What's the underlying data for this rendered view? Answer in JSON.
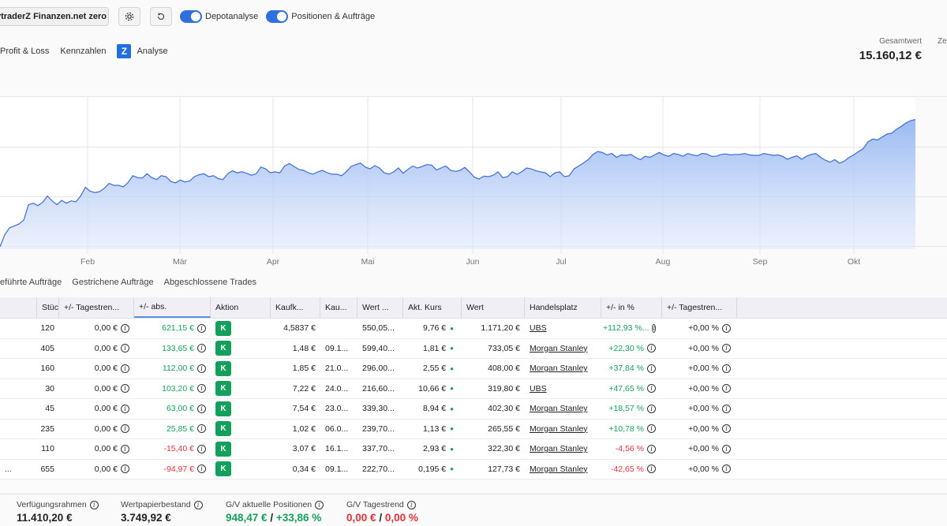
{
  "toolbar": {
    "account": "ytraderZ Finanzen.net zero",
    "toggles": [
      "Depotanalyse",
      "Positionen & Aufträge"
    ]
  },
  "tabs": [
    "Profit & Loss",
    "Kennzahlen",
    "Analyse"
  ],
  "total": {
    "label": "Gesamtwert",
    "value": "15.160,12 €",
    "cut_label": "Ze"
  },
  "chart_data": {
    "type": "area",
    "x_labels": [
      "Feb",
      "Mär",
      "Apr",
      "Mai",
      "Jun",
      "Jul",
      "Aug",
      "Sep",
      "Okt"
    ],
    "values": [
      5,
      30,
      44,
      48,
      52,
      60,
      92,
      95,
      90,
      97,
      110,
      100,
      92,
      101,
      95,
      100,
      98,
      110,
      128,
      120,
      117,
      119,
      126,
      136,
      132,
      132,
      129,
      138,
      152,
      148,
      147,
      156,
      148,
      144,
      152,
      150,
      140,
      137,
      143,
      139,
      141,
      150,
      154,
      156,
      150,
      152,
      146,
      144,
      156,
      162,
      158,
      160,
      157,
      153,
      156,
      170,
      166,
      158,
      160,
      158,
      172,
      177,
      171,
      165,
      163,
      158,
      155,
      160,
      163,
      158,
      155,
      155,
      152,
      160,
      171,
      175,
      178,
      170,
      166,
      173,
      168,
      158,
      155,
      160,
      168,
      157,
      165,
      172,
      168,
      171,
      175,
      174,
      164,
      168,
      172,
      163,
      161,
      163,
      169,
      160,
      149,
      145,
      151,
      150,
      153,
      160,
      148,
      150,
      160,
      155,
      160,
      168,
      166,
      162,
      160,
      158,
      150,
      158,
      160,
      150,
      152,
      166,
      172,
      178,
      185,
      196,
      202,
      200,
      195,
      198,
      190,
      195,
      194,
      196,
      190,
      185,
      192,
      190,
      195,
      200,
      195,
      192,
      198,
      196,
      192,
      198,
      195,
      193,
      198,
      197,
      192,
      192,
      196,
      197,
      195,
      196,
      196,
      198,
      195,
      194,
      194,
      198,
      196,
      194,
      195,
      192,
      186,
      190,
      193,
      186,
      192,
      196,
      198,
      190,
      184,
      180,
      185,
      178,
      182,
      190,
      195,
      202,
      208,
      222,
      228,
      226,
      232,
      238,
      240,
      248,
      254,
      261,
      266,
      268
    ]
  },
  "subtabs": [
    "eführte Aufträge",
    "Gestrichene Aufträge",
    "Abgeschlossene Trades"
  ],
  "table": {
    "headers": [
      "Stück...",
      "+/- Tagestren...",
      "+/- abs.",
      "Aktion",
      "Kaufk...",
      "Kau...",
      "Wert ...",
      "Akt. Kurs",
      "Wert",
      "Handelsplatz",
      "+/- in %",
      "+/- Tagestren..."
    ],
    "badge": "K",
    "rows": [
      {
        "first": "",
        "qty": "120",
        "day": "0,00 €",
        "abs": "621,15 €",
        "abs_sign": "pos",
        "kaufk": "4,5837 €",
        "kau": "",
        "wert1": "550,05...",
        "kurs": "9,76 €",
        "wert": "1.171,20 €",
        "platz": "UBS",
        "pct": "+112,93 %...",
        "pct_sign": "pos",
        "trend": "+0,00 %"
      },
      {
        "first": "",
        "qty": "405",
        "day": "0,00 €",
        "abs": "133,65 €",
        "abs_sign": "pos",
        "kaufk": "1,48 €",
        "kau": "09.1...",
        "wert1": "599,40...",
        "kurs": "1,81 €",
        "wert": "733,05 €",
        "platz": "Morgan Stanley",
        "pct": "+22,30 %",
        "pct_sign": "pos",
        "trend": "+0,00 %"
      },
      {
        "first": "",
        "qty": "160",
        "day": "0,00 €",
        "abs": "112,00 €",
        "abs_sign": "pos",
        "kaufk": "1,85 €",
        "kau": "21.0...",
        "wert1": "296,00...",
        "kurs": "2,55 €",
        "wert": "408,00 €",
        "platz": "Morgan Stanley",
        "pct": "+37,84 %",
        "pct_sign": "pos",
        "trend": "+0,00 %"
      },
      {
        "first": "",
        "qty": "30",
        "day": "0,00 €",
        "abs": "103,20 €",
        "abs_sign": "pos",
        "kaufk": "7,22 €",
        "kau": "24.0...",
        "wert1": "216,60...",
        "kurs": "10,66 €",
        "wert": "319,80 €",
        "platz": "UBS",
        "pct": "+47,65 %",
        "pct_sign": "pos",
        "trend": "+0,00 %"
      },
      {
        "first": "",
        "qty": "45",
        "day": "0,00 €",
        "abs": "63,00 €",
        "abs_sign": "pos",
        "kaufk": "7,54 €",
        "kau": "23.0...",
        "wert1": "339,30...",
        "kurs": "8,94 €",
        "wert": "402,30 €",
        "platz": "Morgan Stanley",
        "pct": "+18,57 %",
        "pct_sign": "pos",
        "trend": "+0,00 %"
      },
      {
        "first": "",
        "qty": "235",
        "day": "0,00 €",
        "abs": "25,85 €",
        "abs_sign": "pos",
        "kaufk": "1,02 €",
        "kau": "06.0...",
        "wert1": "239,70...",
        "kurs": "1,13 €",
        "wert": "265,55 €",
        "platz": "Morgan Stanley",
        "pct": "+10,78 %",
        "pct_sign": "pos",
        "trend": "+0,00 %"
      },
      {
        "first": "",
        "qty": "110",
        "day": "0,00 €",
        "abs": "-15,40 €",
        "abs_sign": "neg",
        "kaufk": "3,07 €",
        "kau": "16.1...",
        "wert1": "337,70...",
        "kurs": "2,93 €",
        "wert": "322,30 €",
        "platz": "Morgan Stanley",
        "pct": "-4,56 %",
        "pct_sign": "neg",
        "trend": "+0,00 %"
      },
      {
        "first": "...",
        "qty": "655",
        "day": "0,00 €",
        "abs": "-94,97 €",
        "abs_sign": "neg",
        "kaufk": "0,34 €",
        "kau": "09.1...",
        "wert1": "222,70...",
        "kurs": "0,195 €",
        "wert": "127,73 €",
        "platz": "Morgan Stanley",
        "pct": "-42,65 %",
        "pct_sign": "neg",
        "trend": "+0,00 %"
      }
    ]
  },
  "footer": {
    "verfuegung": {
      "label": "Verfügungsrahmen",
      "value": "11.410,20 €"
    },
    "bestand": {
      "label": "Wertpapierbestand",
      "value": "3.749,92 €"
    },
    "gv": {
      "label": "G/V aktuelle Positionen",
      "value_abs": "948,47 €",
      "sep": "/",
      "value_pct": "+33,86 %"
    },
    "trend": {
      "label": "G/V Tagestrend",
      "value_abs": "0,00 €",
      "sep": "/",
      "value_pct": "0,00 %"
    }
  }
}
